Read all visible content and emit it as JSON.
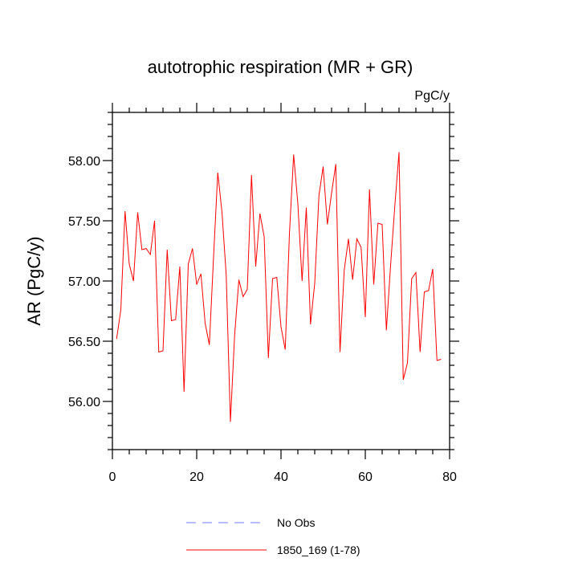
{
  "chart_data": {
    "type": "line",
    "title": "autotrophic respiration (MR + GR)",
    "units_label": "PgC/y",
    "ylabel": "AR  (PgC/y)",
    "xlabel": "",
    "xlim": [
      0,
      80
    ],
    "ylim": [
      55.6,
      58.4
    ],
    "x_ticks": [
      0,
      20,
      40,
      60,
      80
    ],
    "x_tick_labels": [
      "0",
      "20",
      "40",
      "60",
      "80"
    ],
    "y_ticks": [
      56.0,
      56.5,
      57.0,
      57.5,
      58.0
    ],
    "y_tick_labels": [
      "56.00",
      "56.50",
      "57.00",
      "57.50",
      "58.00"
    ],
    "grid": false,
    "legend_placement": "bottom",
    "series": [
      {
        "name": "1850_169 (1-78)",
        "color": "#ff0000",
        "style": "solid",
        "x": [
          1,
          2,
          3,
          4,
          5,
          6,
          7,
          8,
          9,
          10,
          11,
          12,
          13,
          14,
          15,
          16,
          17,
          18,
          19,
          20,
          21,
          22,
          23,
          24,
          25,
          26,
          27,
          28,
          29,
          30,
          31,
          32,
          33,
          34,
          35,
          36,
          37,
          38,
          39,
          40,
          41,
          42,
          43,
          44,
          45,
          46,
          47,
          48,
          49,
          50,
          51,
          52,
          53,
          54,
          55,
          56,
          57,
          58,
          59,
          60,
          61,
          62,
          63,
          64,
          65,
          66,
          67,
          68,
          69,
          70,
          71,
          72,
          73,
          74,
          75,
          76,
          77,
          78
        ],
        "values": [
          56.52,
          56.76,
          57.58,
          57.14,
          57.0,
          57.57,
          57.26,
          57.27,
          57.22,
          57.5,
          56.41,
          56.42,
          57.26,
          56.67,
          56.68,
          57.12,
          56.08,
          57.14,
          57.27,
          56.97,
          57.06,
          56.65,
          56.47,
          57.2,
          57.9,
          57.57,
          57.05,
          55.83,
          56.55,
          57.01,
          56.87,
          56.93,
          57.88,
          57.12,
          57.56,
          57.37,
          56.36,
          57.02,
          57.03,
          56.62,
          56.43,
          57.39,
          58.05,
          57.64,
          57.0,
          57.61,
          56.64,
          56.98,
          57.71,
          57.95,
          57.47,
          57.73,
          57.97,
          56.41,
          57.09,
          57.35,
          57.01,
          57.35,
          57.28,
          56.7,
          57.76,
          56.97,
          57.48,
          57.47,
          56.59,
          57.13,
          57.62,
          58.07,
          56.18,
          56.32,
          57.02,
          57.07,
          56.41,
          56.91,
          56.92,
          57.1,
          56.34,
          56.35
        ]
      }
    ],
    "legend": [
      {
        "label": "No Obs",
        "color": "#7777ff",
        "style": "dashed"
      },
      {
        "label": "1850_169 (1-78)",
        "color": "#ff0000",
        "style": "solid"
      }
    ]
  }
}
